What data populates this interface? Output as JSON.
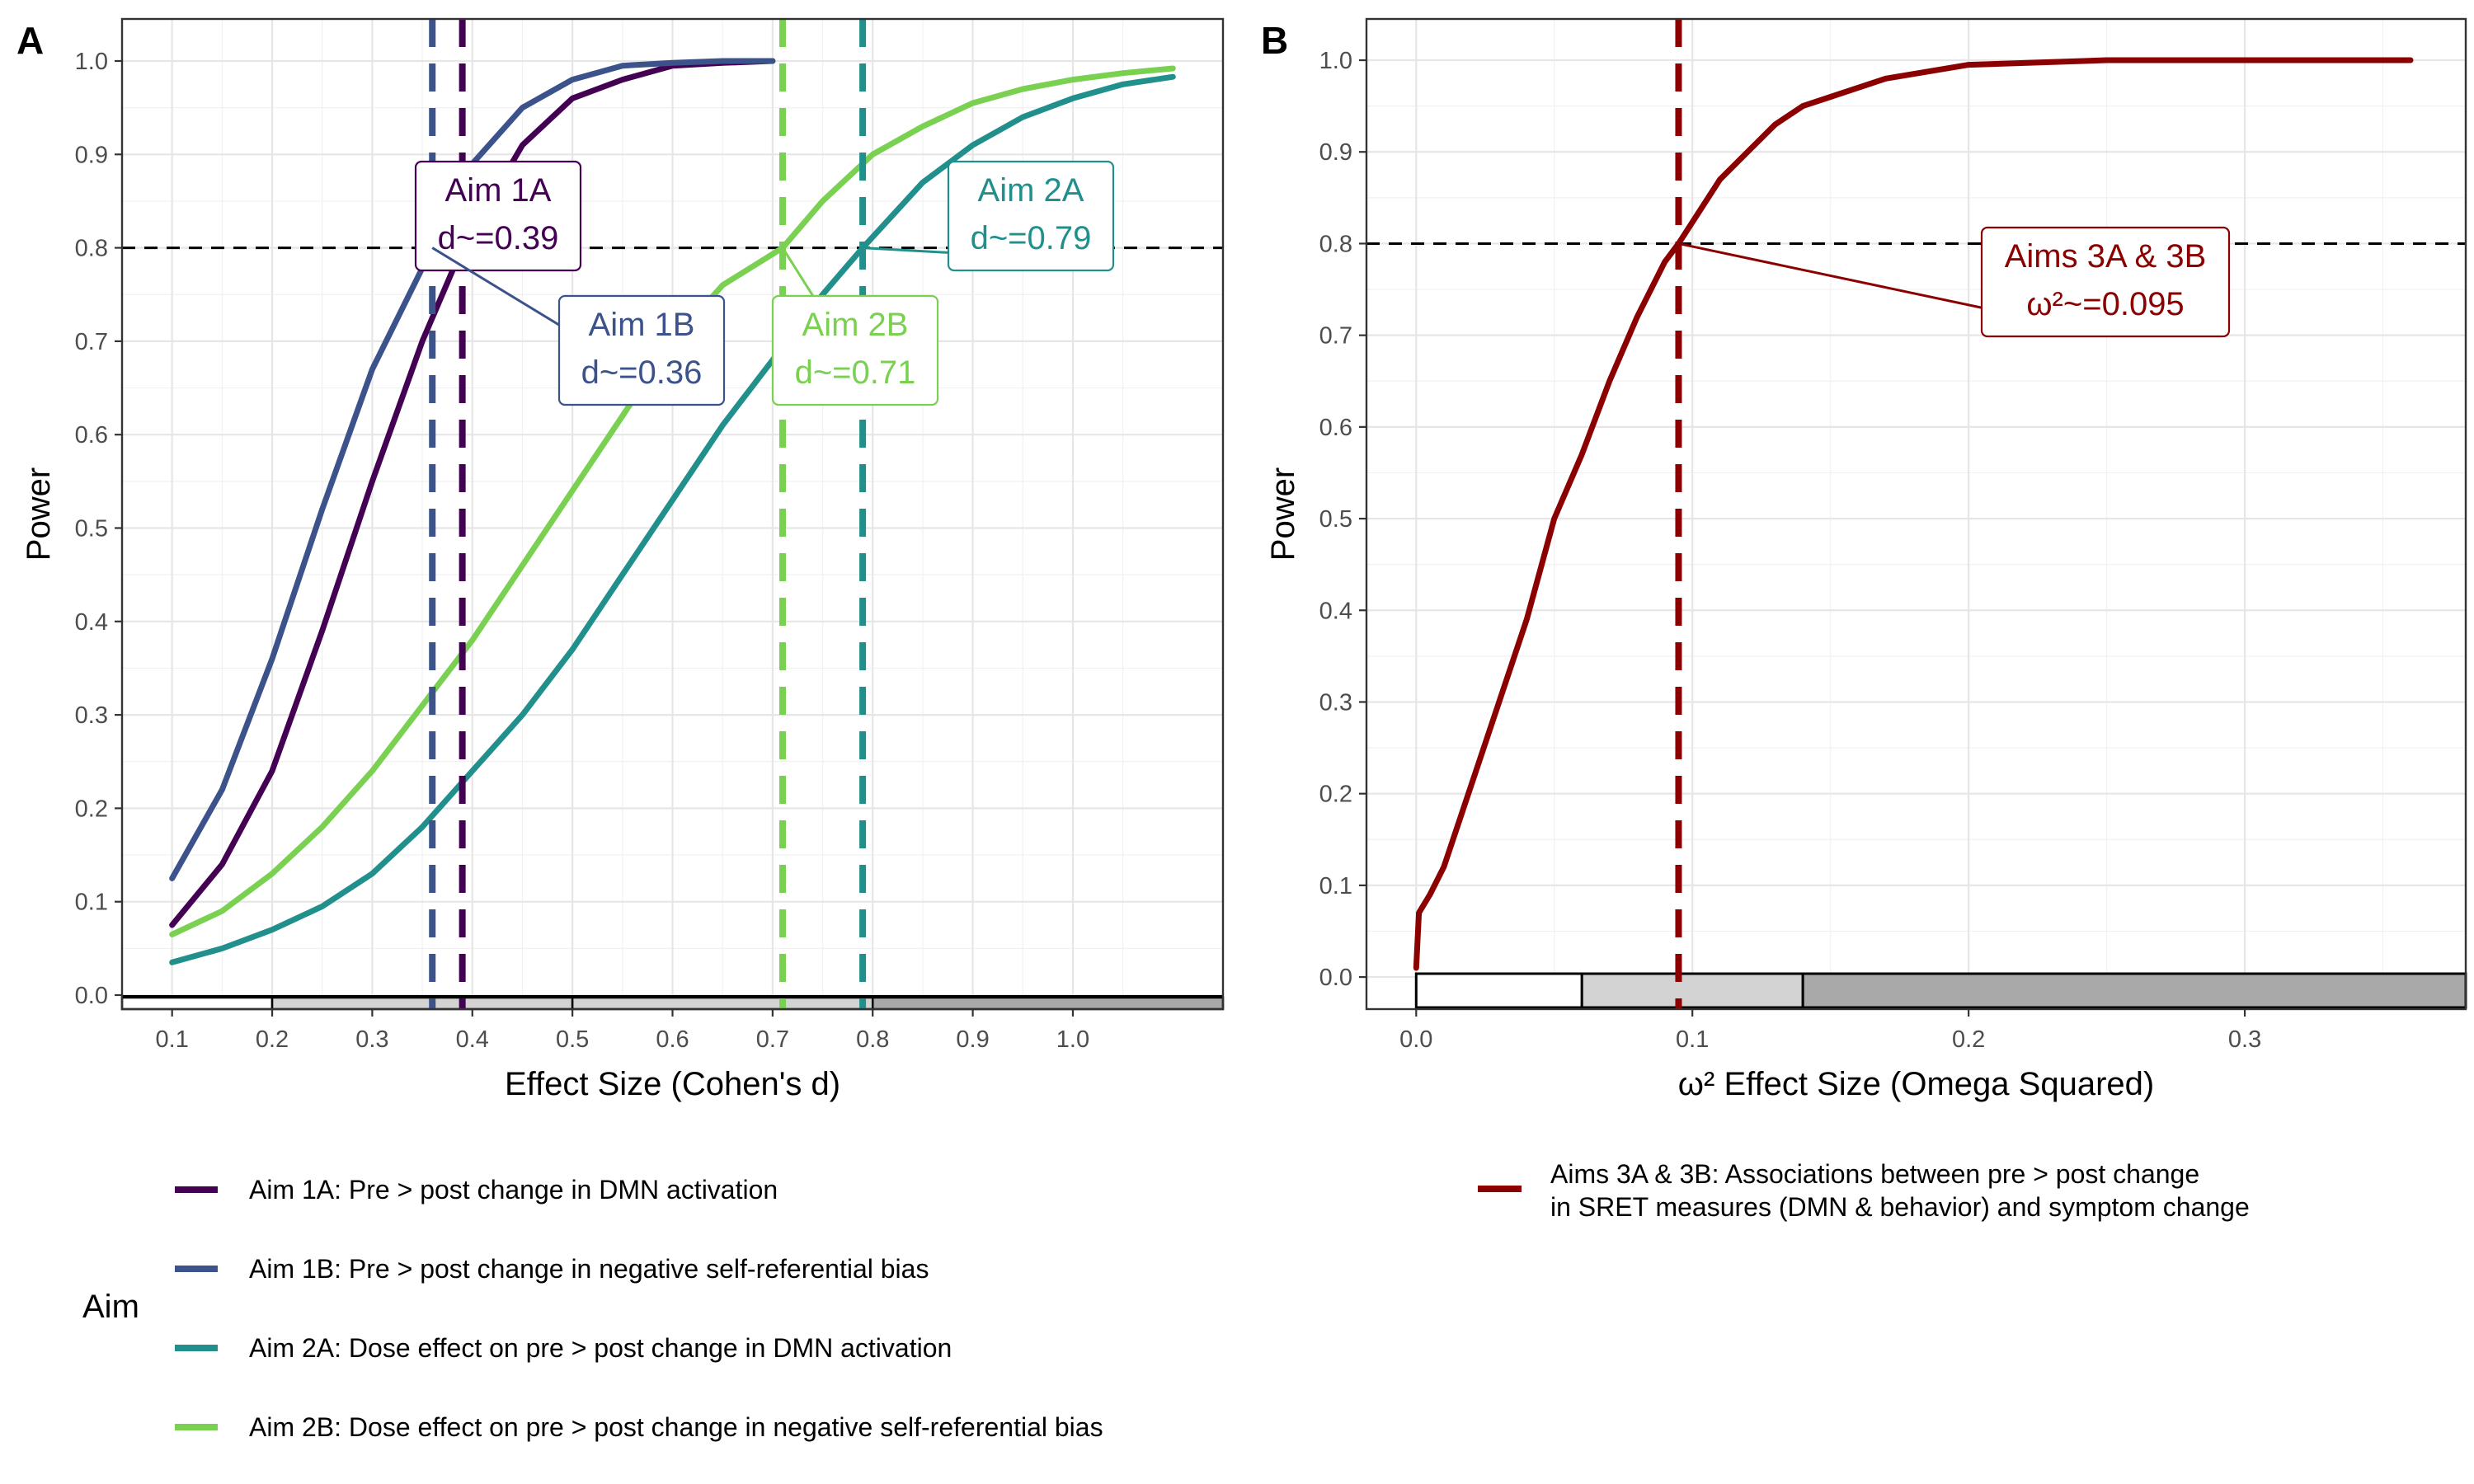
{
  "panels": [
    {
      "label": "A",
      "ylabel": "Power",
      "xlabel": "Effect Size (Cohen's d)",
      "xticks": [
        "0.1",
        "0.2",
        "0.3",
        "0.4",
        "0.5",
        "0.6",
        "0.7",
        "0.8",
        "0.9",
        "1.0"
      ],
      "yticks": [
        "0.0",
        "0.1",
        "0.2",
        "0.3",
        "0.4",
        "0.5",
        "0.6",
        "0.7",
        "0.8",
        "0.9",
        "1.0"
      ]
    },
    {
      "label": "B",
      "ylabel": "Power",
      "xlabel": "ω² Effect Size (Omega Squared)",
      "xticks": [
        "0.0",
        "0.1",
        "0.2",
        "0.3"
      ],
      "yticks": [
        "0.0",
        "0.1",
        "0.2",
        "0.3",
        "0.4",
        "0.5",
        "0.6",
        "0.7",
        "0.8",
        "0.9",
        "1.0"
      ]
    }
  ],
  "legend_a": {
    "title": "Aim",
    "items": [
      {
        "label": "Aim 1A: Pre > post change in DMN activation",
        "color": "#440154"
      },
      {
        "label": "Aim 1B: Pre > post change in negative self-referential bias",
        "color": "#3b528b"
      },
      {
        "label": "Aim 2A: Dose effect on pre > post change in DMN activation",
        "color": "#21908c"
      },
      {
        "label": "Aim 2B: Dose effect on pre > post change in negative self-referential bias",
        "color": "#7ad151"
      }
    ]
  },
  "legend_b": {
    "items": [
      {
        "line1": "Aims 3A & 3B: Associations between pre > post change",
        "line2": "in SRET measures (DMN & behavior) and symptom change",
        "color": "#8b0000"
      }
    ]
  },
  "annotations_a": [
    {
      "name": "Aim 1A",
      "value": "d~=0.39",
      "color": "#440154"
    },
    {
      "name": "Aim 1B",
      "value": "d~=0.36",
      "color": "#3b528b"
    },
    {
      "name": "Aim 2A",
      "value": "d~=0.79",
      "color": "#21908c"
    },
    {
      "name": "Aim 2B",
      "value": "d~=0.71",
      "color": "#7ad151"
    }
  ],
  "annotations_b": [
    {
      "name": "Aims 3A & 3B",
      "value": "ω²~=0.095",
      "color": "#8b0000"
    }
  ],
  "chart_data": [
    {
      "type": "line",
      "panel": "A",
      "xlabel": "Effect Size (Cohen's d)",
      "ylabel": "Power",
      "xlim": [
        0.05,
        1.15
      ],
      "ylim": [
        -0.015,
        1.045
      ],
      "grid": true,
      "legend_placement": "bottom",
      "legend_title": "Aim",
      "threshold": 0.8,
      "effect_size_bands": [
        {
          "from": 0.05,
          "to": 0.2,
          "fill": "#ffffff"
        },
        {
          "from": 0.2,
          "to": 0.5,
          "fill": "#d3d3d3"
        },
        {
          "from": 0.5,
          "to": 0.8,
          "fill": "#d3d3d3"
        },
        {
          "from": 0.8,
          "to": 1.15,
          "fill": "#a9a9a9"
        }
      ],
      "series": [
        {
          "name": "Aim 1A: Pre > post change in DMN activation",
          "color": "#440154",
          "threshold_x": 0.39,
          "x": [
            0.1,
            0.15,
            0.2,
            0.25,
            0.3,
            0.35,
            0.39,
            0.45,
            0.5,
            0.55,
            0.6,
            0.65,
            0.7
          ],
          "y": [
            0.075,
            0.14,
            0.24,
            0.39,
            0.55,
            0.7,
            0.8,
            0.91,
            0.96,
            0.98,
            0.995,
            0.998,
            1.0
          ]
        },
        {
          "name": "Aim 1B: Pre > post change in negative self-referential bias",
          "color": "#3b528b",
          "threshold_x": 0.36,
          "x": [
            0.1,
            0.15,
            0.2,
            0.25,
            0.3,
            0.36,
            0.4,
            0.45,
            0.5,
            0.55,
            0.6,
            0.65,
            0.7
          ],
          "y": [
            0.125,
            0.22,
            0.36,
            0.52,
            0.67,
            0.8,
            0.89,
            0.95,
            0.98,
            0.995,
            0.998,
            1.0,
            1.0
          ]
        },
        {
          "name": "Aim 2A: Dose effect on pre > post change in DMN activation",
          "color": "#21908c",
          "threshold_x": 0.79,
          "x": [
            0.1,
            0.15,
            0.2,
            0.25,
            0.3,
            0.35,
            0.4,
            0.45,
            0.5,
            0.55,
            0.6,
            0.65,
            0.7,
            0.75,
            0.79,
            0.85,
            0.9,
            0.95,
            1.0,
            1.05,
            1.1
          ],
          "y": [
            0.035,
            0.05,
            0.07,
            0.095,
            0.13,
            0.18,
            0.24,
            0.3,
            0.37,
            0.45,
            0.53,
            0.61,
            0.68,
            0.75,
            0.8,
            0.87,
            0.91,
            0.94,
            0.96,
            0.975,
            0.983
          ]
        },
        {
          "name": "Aim 2B: Dose effect on pre > post change in negative self-referential bias",
          "color": "#7ad151",
          "threshold_x": 0.71,
          "x": [
            0.1,
            0.15,
            0.2,
            0.25,
            0.3,
            0.35,
            0.4,
            0.45,
            0.5,
            0.55,
            0.6,
            0.65,
            0.71,
            0.75,
            0.8,
            0.85,
            0.9,
            0.95,
            1.0,
            1.05,
            1.1
          ],
          "y": [
            0.065,
            0.09,
            0.13,
            0.18,
            0.24,
            0.31,
            0.38,
            0.46,
            0.54,
            0.62,
            0.7,
            0.76,
            0.8,
            0.85,
            0.9,
            0.93,
            0.955,
            0.97,
            0.98,
            0.987,
            0.992
          ]
        }
      ]
    },
    {
      "type": "line",
      "panel": "B",
      "xlabel": "ω² Effect Size (Omega Squared)",
      "ylabel": "Power",
      "xlim": [
        -0.018,
        0.38
      ],
      "ylim": [
        -0.035,
        1.045
      ],
      "grid": true,
      "legend_placement": "bottom",
      "threshold": 0.8,
      "effect_size_bands": [
        {
          "from": 0.0,
          "to": 0.06,
          "fill": "#ffffff"
        },
        {
          "from": 0.06,
          "to": 0.14,
          "fill": "#d3d3d3"
        },
        {
          "from": 0.14,
          "to": 0.38,
          "fill": "#a9a9a9"
        }
      ],
      "series": [
        {
          "name": "Aims 3A & 3B: Associations between pre > post change in SRET measures (DMN & behavior) and symptom change",
          "color": "#8b0000",
          "threshold_x": 0.095,
          "x": [
            0.0,
            0.001,
            0.005,
            0.01,
            0.02,
            0.03,
            0.04,
            0.05,
            0.06,
            0.07,
            0.08,
            0.09,
            0.095,
            0.11,
            0.12,
            0.13,
            0.14,
            0.15,
            0.17,
            0.2,
            0.25,
            0.3,
            0.36
          ],
          "y": [
            0.01,
            0.07,
            0.09,
            0.12,
            0.21,
            0.3,
            0.39,
            0.5,
            0.57,
            0.65,
            0.72,
            0.78,
            0.8,
            0.87,
            0.9,
            0.93,
            0.95,
            0.96,
            0.98,
            0.995,
            1.0,
            1.0,
            1.0
          ]
        }
      ]
    }
  ]
}
